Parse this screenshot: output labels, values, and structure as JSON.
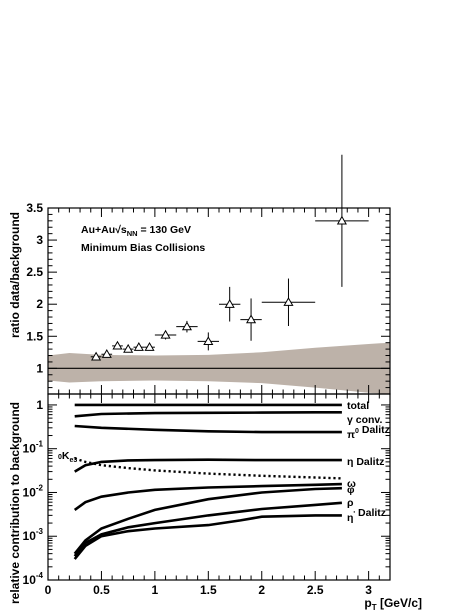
{
  "chart_data": [
    {
      "type": "scatter",
      "ylabel": "ratio data/background",
      "xlim": [
        0,
        3.2
      ],
      "ylim": [
        0.6,
        3.5
      ],
      "y_ticks": [
        "1",
        "1.5",
        "2",
        "2.5",
        "3",
        "3.5"
      ],
      "annotations": {
        "system_prefix": "Au+Au",
        "energy_label": "√s",
        "energy_sub": "NN",
        "energy_value": " = 130 GeV",
        "collisions": "Minimum Bias Collisions"
      },
      "reference_line": 1,
      "band_color": "#bdb2a9",
      "band": {
        "x": [
          0.0,
          0.2,
          0.5,
          1.0,
          1.5,
          2.0,
          2.5,
          3.0,
          3.2
        ],
        "low": [
          0.81,
          0.78,
          0.8,
          0.81,
          0.8,
          0.77,
          0.7,
          0.62,
          0.6
        ],
        "high": [
          1.2,
          1.24,
          1.21,
          1.2,
          1.21,
          1.25,
          1.32,
          1.38,
          1.4
        ]
      },
      "points": [
        {
          "x": 0.45,
          "y": 1.18,
          "xerr": 0.05,
          "yerr": 0.04
        },
        {
          "x": 0.55,
          "y": 1.22,
          "xerr": 0.05,
          "yerr": 0.04
        },
        {
          "x": 0.65,
          "y": 1.35,
          "xerr": 0.05,
          "yerr": 0.05
        },
        {
          "x": 0.75,
          "y": 1.3,
          "xerr": 0.05,
          "yerr": 0.05
        },
        {
          "x": 0.85,
          "y": 1.33,
          "xerr": 0.05,
          "yerr": 0.05
        },
        {
          "x": 0.95,
          "y": 1.33,
          "xerr": 0.05,
          "yerr": 0.05
        },
        {
          "x": 1.1,
          "y": 1.52,
          "xerr": 0.1,
          "yerr": 0.07
        },
        {
          "x": 1.3,
          "y": 1.65,
          "xerr": 0.1,
          "yerr": 0.09
        },
        {
          "x": 1.5,
          "y": 1.42,
          "xerr": 0.1,
          "yerr": 0.14
        },
        {
          "x": 1.7,
          "y": 2.0,
          "xerr": 0.1,
          "yerr": 0.27
        },
        {
          "x": 1.9,
          "y": 1.76,
          "xerr": 0.1,
          "yerr": 0.33
        },
        {
          "x": 2.25,
          "y": 2.03,
          "xerr": 0.25,
          "yerr": 0.37
        },
        {
          "x": 2.75,
          "y": 3.3,
          "xerr": 0.25,
          "yerr": 1.03
        }
      ]
    },
    {
      "type": "line",
      "ylabel": "relative contribution to background",
      "xlabel_main": "p",
      "xlabel_sub": "T",
      "xlabel_unit": " [GeV/c]",
      "x_ticks": [
        "0",
        "0.5",
        "1",
        "1.5",
        "2",
        "2.5",
        "3"
      ],
      "xlim": [
        0,
        3.2
      ],
      "ylim_log10": [
        -4,
        0.25
      ],
      "log_scale": true,
      "y_ticks": [
        {
          "base": "10",
          "exp": "-4",
          "text": "",
          "log": -4
        },
        {
          "base": "10",
          "exp": "-3",
          "text": "",
          "log": -3
        },
        {
          "base": "10",
          "exp": "-2",
          "text": "",
          "log": -2
        },
        {
          "base": "10",
          "exp": "-1",
          "text": "",
          "log": -1
        },
        {
          "base": "",
          "exp": "",
          "text": "1",
          "log": 0
        }
      ],
      "series": [
        {
          "name": "total",
          "style": "solid",
          "x": [
            0.25,
            0.5,
            1.0,
            1.5,
            2.0,
            2.5,
            2.75
          ],
          "y": [
            1.0,
            1.0,
            1.0,
            1.0,
            1.0,
            1.0,
            1.0
          ]
        },
        {
          "name": "conv.",
          "prefix": "γ",
          "style": "solid",
          "x": [
            0.25,
            0.5,
            0.8,
            1.0,
            1.5,
            2.0,
            2.5,
            2.75
          ],
          "y": [
            0.55,
            0.62,
            0.64,
            0.65,
            0.66,
            0.67,
            0.68,
            0.68
          ]
        },
        {
          "name": "Dalitz",
          "prefix": "π",
          "sup": "0",
          "style": "solid",
          "x": [
            0.25,
            0.5,
            1.0,
            1.5,
            2.0,
            2.5,
            2.75
          ],
          "y": [
            0.33,
            0.3,
            0.27,
            0.25,
            0.24,
            0.24,
            0.24
          ]
        },
        {
          "name": "Dalitz",
          "prefix": "η",
          "style": "solid",
          "x": [
            0.25,
            0.35,
            0.5,
            0.75,
            1.0,
            1.5,
            2.0,
            2.5,
            2.75
          ],
          "y": [
            0.03,
            0.042,
            0.05,
            0.054,
            0.055,
            0.056,
            0.055,
            0.055,
            0.055
          ]
        },
        {
          "name": "K",
          "sub": "e3",
          "sup": "0",
          "style": "dotted",
          "x": [
            0.25,
            0.35,
            0.5,
            0.75,
            1.0,
            1.5,
            2.0,
            2.5,
            2.75
          ],
          "y": [
            0.06,
            0.05,
            0.042,
            0.036,
            0.032,
            0.027,
            0.024,
            0.022,
            0.021
          ]
        },
        {
          "name": "ω",
          "style": "solid",
          "x": [
            0.25,
            0.35,
            0.5,
            0.75,
            1.0,
            1.5,
            2.0,
            2.5,
            2.75
          ],
          "y": [
            0.004,
            0.006,
            0.008,
            0.01,
            0.0115,
            0.013,
            0.014,
            0.015,
            0.0155
          ]
        },
        {
          "name": "φ",
          "style": "solid",
          "x": [
            0.25,
            0.35,
            0.5,
            0.75,
            1.0,
            1.5,
            2.0,
            2.5,
            2.75
          ],
          "y": [
            0.0004,
            0.0008,
            0.0015,
            0.0025,
            0.004,
            0.007,
            0.01,
            0.012,
            0.0125
          ]
        },
        {
          "name": "ρ",
          "style": "solid",
          "x": [
            0.25,
            0.35,
            0.5,
            0.75,
            1.0,
            1.5,
            2.0,
            2.5,
            2.75
          ],
          "y": [
            0.00035,
            0.0007,
            0.0011,
            0.0016,
            0.002,
            0.003,
            0.0042,
            0.0052,
            0.0058
          ]
        },
        {
          "name": "Dalitz",
          "prefix": "η",
          "sup": "'",
          "style": "solid",
          "x": [
            0.25,
            0.35,
            0.5,
            0.75,
            1.0,
            1.5,
            1.8,
            2.0,
            2.5,
            2.75
          ],
          "y": [
            0.0003,
            0.0006,
            0.001,
            0.0013,
            0.0015,
            0.0018,
            0.0023,
            0.0028,
            0.003,
            0.003
          ]
        }
      ]
    }
  ]
}
